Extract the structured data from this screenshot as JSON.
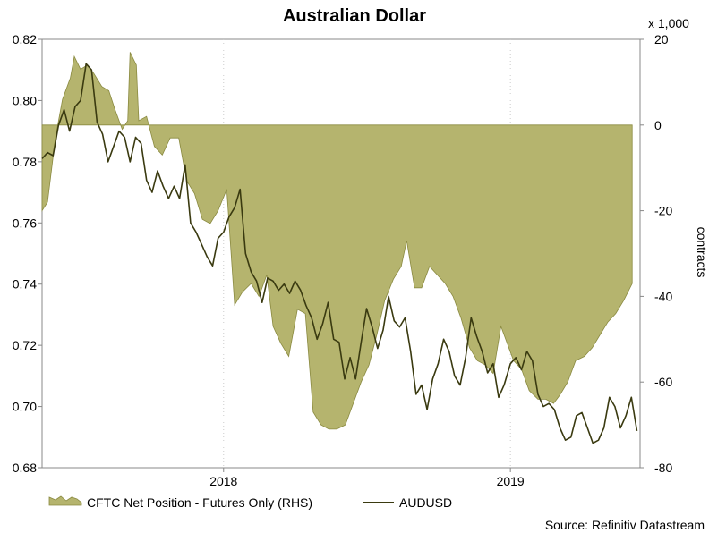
{
  "chart_data": {
    "type": "area+line",
    "title": "Australian Dollar",
    "y_left": {
      "ticks": [
        "0.82",
        "0.80",
        "0.78",
        "0.76",
        "0.74",
        "0.72",
        "0.70",
        "0.68"
      ],
      "lim": [
        0.68,
        0.82
      ]
    },
    "y_right": {
      "ticks": [
        "20",
        "0",
        "-20",
        "-40",
        "-60",
        "-80"
      ],
      "lim": [
        -80,
        20
      ],
      "unit_label": "x 1,000",
      "label": "contracts"
    },
    "x": {
      "ticks": [
        "2018",
        "2019"
      ],
      "range": [
        "2017-05-15",
        "2019-06-15"
      ]
    },
    "series": [
      {
        "name": "CFTC Net Position - Futures Only (RHS)",
        "kind": "area",
        "axis": "right",
        "color": "#b5b46e",
        "edge_color": "#8a8a40",
        "points": [
          [
            "2017-05-15",
            -20
          ],
          [
            "2017-05-22",
            -18
          ],
          [
            "2017-06-01",
            -3
          ],
          [
            "2017-06-10",
            6
          ],
          [
            "2017-06-20",
            11
          ],
          [
            "2017-06-25",
            16
          ],
          [
            "2017-07-03",
            13
          ],
          [
            "2017-07-12",
            14
          ],
          [
            "2017-07-20",
            12
          ],
          [
            "2017-07-30",
            9
          ],
          [
            "2017-08-08",
            8
          ],
          [
            "2017-08-15",
            4
          ],
          [
            "2017-08-25",
            -1
          ],
          [
            "2017-09-01",
            1
          ],
          [
            "2017-09-04",
            17
          ],
          [
            "2017-09-12",
            14
          ],
          [
            "2017-09-15",
            1
          ],
          [
            "2017-09-25",
            2
          ],
          [
            "2017-10-05",
            -5
          ],
          [
            "2017-10-15",
            -7
          ],
          [
            "2017-10-25",
            -3
          ],
          [
            "2017-11-05",
            -3
          ],
          [
            "2017-11-15",
            -13
          ],
          [
            "2017-11-25",
            -16
          ],
          [
            "2017-12-05",
            -22
          ],
          [
            "2017-12-15",
            -23
          ],
          [
            "2017-12-25",
            -20
          ],
          [
            "2018-01-05",
            -15
          ],
          [
            "2018-01-15",
            -42
          ],
          [
            "2018-01-25",
            -39
          ],
          [
            "2018-02-05",
            -37
          ],
          [
            "2018-02-15",
            -40
          ],
          [
            "2018-02-25",
            -35
          ],
          [
            "2018-03-05",
            -47
          ],
          [
            "2018-03-15",
            -51
          ],
          [
            "2018-03-25",
            -54
          ],
          [
            "2018-04-05",
            -43
          ],
          [
            "2018-04-15",
            -44
          ],
          [
            "2018-04-25",
            -67
          ],
          [
            "2018-05-05",
            -70
          ],
          [
            "2018-05-15",
            -71
          ],
          [
            "2018-05-25",
            -71
          ],
          [
            "2018-06-05",
            -70
          ],
          [
            "2018-06-15",
            -65
          ],
          [
            "2018-06-25",
            -60
          ],
          [
            "2018-07-05",
            -56
          ],
          [
            "2018-07-15",
            -49
          ],
          [
            "2018-07-25",
            -41
          ],
          [
            "2018-08-05",
            -36
          ],
          [
            "2018-08-15",
            -33
          ],
          [
            "2018-08-22",
            -27
          ],
          [
            "2018-09-01",
            -38
          ],
          [
            "2018-09-10",
            -38
          ],
          [
            "2018-09-20",
            -33
          ],
          [
            "2018-09-30",
            -35
          ],
          [
            "2018-10-10",
            -37
          ],
          [
            "2018-10-20",
            -40
          ],
          [
            "2018-10-30",
            -45
          ],
          [
            "2018-11-10",
            -52
          ],
          [
            "2018-11-20",
            -55
          ],
          [
            "2018-11-30",
            -56
          ],
          [
            "2018-12-10",
            -58
          ],
          [
            "2018-12-20",
            -47
          ],
          [
            "2019-01-05",
            -55
          ],
          [
            "2019-01-15",
            -57
          ],
          [
            "2019-01-25",
            -62
          ],
          [
            "2019-02-05",
            -64
          ],
          [
            "2019-02-15",
            -64
          ],
          [
            "2019-02-25",
            -65
          ],
          [
            "2019-03-05",
            -63
          ],
          [
            "2019-03-15",
            -60
          ],
          [
            "2019-03-25",
            -55
          ],
          [
            "2019-04-05",
            -54
          ],
          [
            "2019-04-15",
            -52
          ],
          [
            "2019-04-25",
            -49
          ],
          [
            "2019-05-05",
            -46
          ],
          [
            "2019-05-15",
            -44
          ],
          [
            "2019-05-25",
            -41
          ],
          [
            "2019-06-05",
            -37
          ]
        ]
      },
      {
        "name": "AUDUSD",
        "kind": "line",
        "axis": "left",
        "color": "#3a3a10",
        "points": [
          [
            "2017-05-15",
            0.781
          ],
          [
            "2017-05-22",
            0.783
          ],
          [
            "2017-05-29",
            0.782
          ],
          [
            "2017-06-05",
            0.792
          ],
          [
            "2017-06-12",
            0.797
          ],
          [
            "2017-06-19",
            0.79
          ],
          [
            "2017-06-26",
            0.798
          ],
          [
            "2017-07-03",
            0.8
          ],
          [
            "2017-07-10",
            0.812
          ],
          [
            "2017-07-17",
            0.81
          ],
          [
            "2017-07-24",
            0.793
          ],
          [
            "2017-07-31",
            0.789
          ],
          [
            "2017-08-07",
            0.78
          ],
          [
            "2017-08-14",
            0.785
          ],
          [
            "2017-08-21",
            0.79
          ],
          [
            "2017-08-28",
            0.788
          ],
          [
            "2017-09-04",
            0.78
          ],
          [
            "2017-09-11",
            0.788
          ],
          [
            "2017-09-18",
            0.786
          ],
          [
            "2017-09-25",
            0.774
          ],
          [
            "2017-10-02",
            0.77
          ],
          [
            "2017-10-09",
            0.777
          ],
          [
            "2017-10-16",
            0.772
          ],
          [
            "2017-10-23",
            0.768
          ],
          [
            "2017-10-30",
            0.772
          ],
          [
            "2017-11-06",
            0.768
          ],
          [
            "2017-11-13",
            0.779
          ],
          [
            "2017-11-20",
            0.76
          ],
          [
            "2017-11-27",
            0.757
          ],
          [
            "2017-12-04",
            0.753
          ],
          [
            "2017-12-11",
            0.749
          ],
          [
            "2017-12-18",
            0.746
          ],
          [
            "2017-12-25",
            0.755
          ],
          [
            "2018-01-01",
            0.757
          ],
          [
            "2018-01-08",
            0.762
          ],
          [
            "2018-01-15",
            0.765
          ],
          [
            "2018-01-22",
            0.771
          ],
          [
            "2018-01-29",
            0.75
          ],
          [
            "2018-02-05",
            0.744
          ],
          [
            "2018-02-12",
            0.741
          ],
          [
            "2018-02-19",
            0.734
          ],
          [
            "2018-02-26",
            0.742
          ],
          [
            "2018-03-05",
            0.741
          ],
          [
            "2018-03-12",
            0.738
          ],
          [
            "2018-03-19",
            0.74
          ],
          [
            "2018-03-26",
            0.737
          ],
          [
            "2018-04-02",
            0.741
          ],
          [
            "2018-04-09",
            0.738
          ],
          [
            "2018-04-16",
            0.733
          ],
          [
            "2018-04-23",
            0.729
          ],
          [
            "2018-04-30",
            0.722
          ],
          [
            "2018-05-07",
            0.727
          ],
          [
            "2018-05-14",
            0.734
          ],
          [
            "2018-05-21",
            0.722
          ],
          [
            "2018-05-28",
            0.721
          ],
          [
            "2018-06-04",
            0.709
          ],
          [
            "2018-06-11",
            0.716
          ],
          [
            "2018-06-18",
            0.709
          ],
          [
            "2018-06-25",
            0.721
          ],
          [
            "2018-07-02",
            0.732
          ],
          [
            "2018-07-09",
            0.726
          ],
          [
            "2018-07-16",
            0.719
          ],
          [
            "2018-07-23",
            0.725
          ],
          [
            "2018-07-30",
            0.736
          ],
          [
            "2018-08-06",
            0.728
          ],
          [
            "2018-08-13",
            0.726
          ],
          [
            "2018-08-20",
            0.729
          ],
          [
            "2018-08-27",
            0.718
          ],
          [
            "2018-09-03",
            0.704
          ],
          [
            "2018-09-10",
            0.707
          ],
          [
            "2018-09-17",
            0.699
          ],
          [
            "2018-09-24",
            0.709
          ],
          [
            "2018-10-01",
            0.714
          ],
          [
            "2018-10-08",
            0.722
          ],
          [
            "2018-10-15",
            0.718
          ],
          [
            "2018-10-22",
            0.71
          ],
          [
            "2018-10-29",
            0.707
          ],
          [
            "2018-11-05",
            0.716
          ],
          [
            "2018-11-12",
            0.729
          ],
          [
            "2018-11-19",
            0.723
          ],
          [
            "2018-11-26",
            0.718
          ],
          [
            "2018-12-03",
            0.711
          ],
          [
            "2018-12-10",
            0.714
          ],
          [
            "2018-12-17",
            0.703
          ],
          [
            "2018-12-24",
            0.707
          ],
          [
            "2019-01-01",
            0.714
          ],
          [
            "2019-01-08",
            0.716
          ],
          [
            "2019-01-15",
            0.712
          ],
          [
            "2019-01-22",
            0.718
          ],
          [
            "2019-01-29",
            0.715
          ],
          [
            "2019-02-05",
            0.704
          ],
          [
            "2019-02-12",
            0.7
          ],
          [
            "2019-02-19",
            0.701
          ],
          [
            "2019-02-26",
            0.699
          ],
          [
            "2019-03-05",
            0.693
          ],
          [
            "2019-03-12",
            0.689
          ],
          [
            "2019-03-19",
            0.69
          ],
          [
            "2019-03-26",
            0.697
          ],
          [
            "2019-04-02",
            0.698
          ],
          [
            "2019-04-09",
            0.693
          ],
          [
            "2019-04-16",
            0.688
          ],
          [
            "2019-04-23",
            0.689
          ],
          [
            "2019-04-30",
            0.693
          ],
          [
            "2019-05-07",
            0.703
          ],
          [
            "2019-05-14",
            0.7
          ],
          [
            "2019-05-21",
            0.693
          ],
          [
            "2019-05-28",
            0.697
          ],
          [
            "2019-06-04",
            0.703
          ],
          [
            "2019-06-11",
            0.692
          ]
        ]
      }
    ],
    "legend_position": "bottom-left",
    "grid": "dotted vertical at year boundaries",
    "source": "Source: Refinitiv Datastream"
  }
}
